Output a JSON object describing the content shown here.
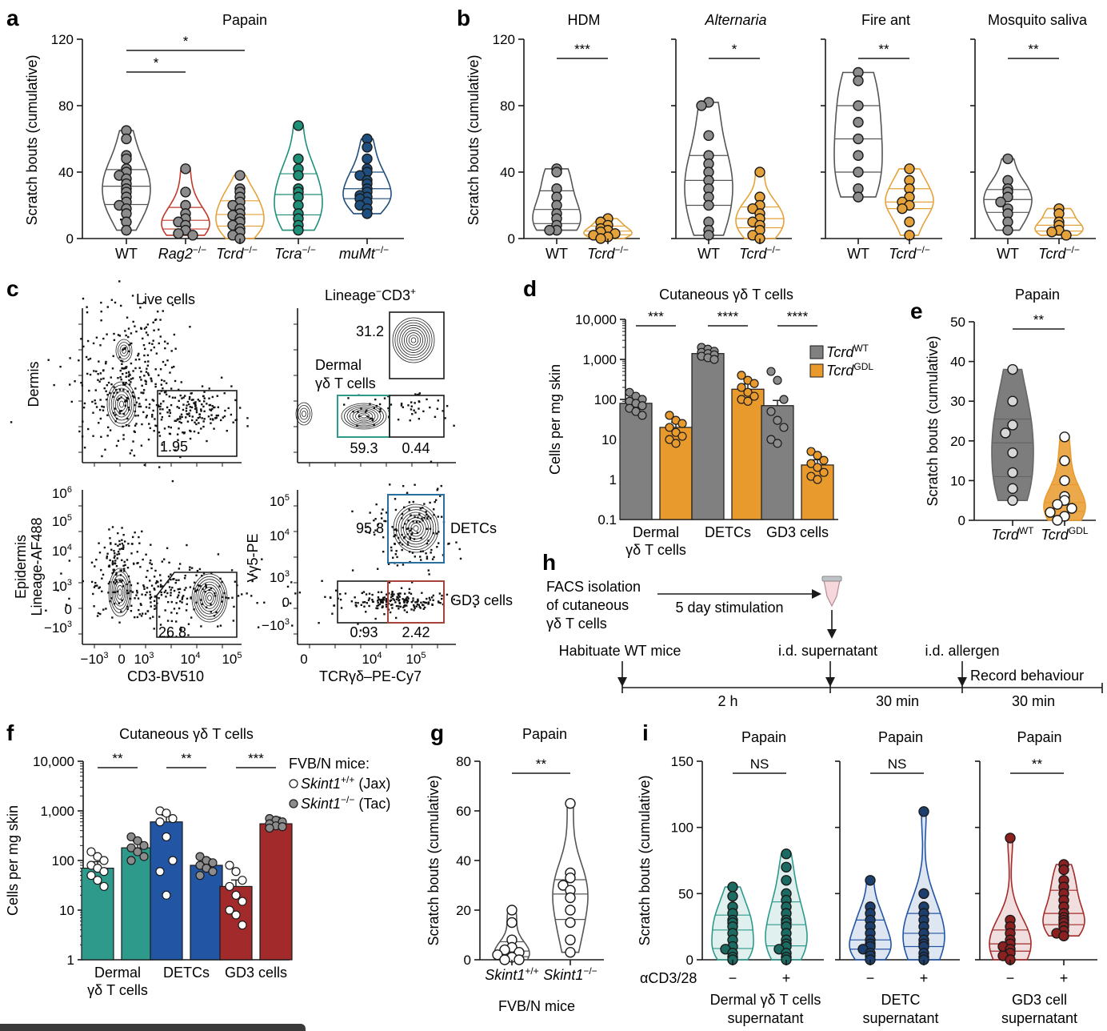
{
  "colors": {
    "wt": "#555555",
    "rag2": "#c0392b",
    "tcrd": "#e5a23a",
    "tcra": "#1f8f78",
    "mumt": "#1f4f7f",
    "gray_bar": "#808080",
    "orange_bar": "#e99a2c",
    "teal": "#2e9a8c",
    "blue": "#2255a4",
    "red": "#a32a2a",
    "gate_teal": "#2e9a8c",
    "gate_blue": "#2b6f9e",
    "gate_red": "#a8423a"
  },
  "chart_data": [
    {
      "panel": "a",
      "type": "scatter",
      "title": "Papain",
      "ylabel": "Scratch bouts (cumulative)",
      "ylim": [
        0,
        120
      ],
      "yticks": [
        "0",
        "40",
        "80",
        "120"
      ],
      "categories": [
        "WT",
        "Rag2",
        "Tcrd",
        "Tcra",
        "muMt"
      ],
      "category_suffix": "−/−",
      "series": [
        {
          "group": "WT",
          "values": [
            65,
            60,
            50,
            48,
            42,
            40,
            38,
            36,
            33,
            30,
            28,
            25,
            22,
            20,
            18,
            15,
            10,
            5
          ]
        },
        {
          "group": "Rag2",
          "values": [
            42,
            28,
            20,
            15,
            12,
            10,
            8,
            5,
            3,
            2
          ]
        },
        {
          "group": "Tcrd",
          "values": [
            38,
            30,
            28,
            25,
            22,
            20,
            18,
            15,
            14,
            12,
            10,
            8,
            6,
            4,
            2,
            0
          ]
        },
        {
          "group": "Tcra",
          "values": [
            68,
            48,
            42,
            38,
            30,
            28,
            25,
            20,
            15,
            12,
            8,
            5
          ]
        },
        {
          "group": "muMt",
          "values": [
            60,
            55,
            48,
            42,
            40,
            38,
            35,
            33,
            30,
            28,
            26,
            25,
            24,
            22,
            20,
            18,
            15
          ]
        }
      ],
      "significance": [
        "*",
        "*"
      ]
    },
    {
      "panel": "b",
      "type": "scatter",
      "ylabel": "Scratch bouts (cumulative)",
      "ylim": [
        0,
        120
      ],
      "yticks": [
        "0",
        "40",
        "80",
        "120"
      ],
      "subplots": [
        {
          "title": "HDM",
          "sig": "***",
          "WT": [
            42,
            40,
            30,
            25,
            20,
            15,
            12,
            8,
            5,
            5
          ],
          "Tcrd": [
            12,
            10,
            8,
            6,
            5,
            4,
            3,
            2,
            1,
            0
          ]
        },
        {
          "title": "Alternaria",
          "sig": "*",
          "WT": [
            82,
            80,
            62,
            50,
            45,
            40,
            35,
            30,
            25,
            20,
            10,
            5,
            2
          ],
          "Tcrd": [
            40,
            25,
            20,
            18,
            15,
            12,
            10,
            8,
            5,
            2,
            0
          ]
        },
        {
          "title": "Fire ant",
          "sig": "**",
          "WT": [
            100,
            95,
            80,
            70,
            60,
            50,
            40,
            30,
            25
          ],
          "Tcrd": [
            42,
            35,
            30,
            25,
            22,
            20,
            18,
            10,
            2
          ]
        },
        {
          "title": "Mosquito saliva",
          "sig": "**",
          "WT": [
            48,
            35,
            30,
            28,
            25,
            22,
            18,
            15,
            10,
            5
          ],
          "Tcrd": [
            18,
            15,
            10,
            8,
            5,
            4,
            2
          ]
        }
      ],
      "categories": [
        "WT",
        "Tcrd"
      ],
      "category_suffix": "−/−"
    },
    {
      "panel": "d",
      "type": "bar",
      "title": "Cutaneous γδ T cells",
      "ylabel": "Cells per mg skin",
      "log_scale": true,
      "yticks": [
        "0.1",
        "1",
        "10",
        "100",
        "1,000",
        "10,000"
      ],
      "categories": [
        "Dermal\nγδ T cells",
        "DETCs",
        "GD3 cells"
      ],
      "series": [
        {
          "name": "Tcrd",
          "sup": "WT",
          "values": [
            80,
            1400,
            70
          ],
          "points": [
            [
              150,
              120,
              100,
              90,
              80,
              70,
              60,
              50,
              40
            ],
            [
              2000,
              1800,
              1600,
              1500,
              1400,
              1300,
              1200,
              1100,
              1000
            ],
            [
              500,
              300,
              100,
              50,
              30,
              20,
              10,
              8
            ]
          ]
        },
        {
          "name": "Tcrd",
          "sup": "GDL",
          "values": [
            20,
            180,
            2.3
          ],
          "points": [
            [
              40,
              30,
              25,
              20,
              15,
              12,
              10,
              8
            ],
            [
              400,
              300,
              250,
              200,
              150,
              120,
              100,
              90
            ],
            [
              5,
              4,
              3,
              2.5,
              2,
              1.5,
              1.2,
              1
            ]
          ]
        }
      ],
      "significance": [
        "***",
        "****",
        "****"
      ],
      "legend_position": "top-right"
    },
    {
      "panel": "e",
      "type": "scatter",
      "title": "Papain",
      "ylabel": "Scratch bouts (cumulative)",
      "ylim": [
        0,
        50
      ],
      "yticks": [
        "0",
        "10",
        "20",
        "30",
        "40",
        "50"
      ],
      "categories": [
        "Tcrd",
        "Tcrd"
      ],
      "category_sups": [
        "WT",
        "GDL"
      ],
      "series": [
        {
          "group": "TcrdWT",
          "values": [
            38,
            30,
            24,
            22,
            17,
            12,
            8,
            5
          ]
        },
        {
          "group": "TcrdGDL",
          "values": [
            21,
            15,
            10,
            6,
            5,
            4,
            3,
            2,
            1,
            0
          ]
        }
      ],
      "significance": [
        "**"
      ]
    },
    {
      "panel": "f",
      "type": "bar",
      "title": "Cutaneous γδ T cells",
      "ylabel": "Cells per mg skin",
      "log_scale": true,
      "yticks": [
        "1",
        "10",
        "100",
        "1,000",
        "10,000"
      ],
      "categories": [
        "Dermal\nγδ T cells",
        "DETCs",
        "GD3 cells"
      ],
      "legend_title": "FVB/N mice:",
      "series": [
        {
          "name": "Skint1",
          "sup": "+/+",
          "note": " (Jax)",
          "values": [
            70,
            600,
            30
          ],
          "points": [
            [
              150,
              120,
              100,
              80,
              70,
              60,
              50,
              40,
              30
            ],
            [
              1000,
              900,
              700,
              600,
              300,
              100,
              60,
              20
            ],
            [
              80,
              60,
              40,
              30,
              20,
              15,
              10,
              8,
              5
            ]
          ]
        },
        {
          "name": "Skint1",
          "sup": "−/−",
          "note": " (Tac)",
          "values": [
            180,
            80,
            550
          ],
          "points": [
            [
              300,
              250,
              200,
              180,
              150,
              120,
              100
            ],
            [
              120,
              100,
              90,
              80,
              70,
              60,
              50
            ],
            [
              700,
              650,
              600,
              550,
              500,
              480,
              450
            ]
          ]
        }
      ],
      "significance": [
        "**",
        "**",
        "***"
      ]
    },
    {
      "panel": "g",
      "type": "scatter",
      "title": "Papain",
      "ylabel": "Scratch bouts (cumulative)",
      "ylim": [
        0,
        80
      ],
      "yticks": [
        "0",
        "20",
        "40",
        "60",
        "80"
      ],
      "categories": [
        "Skint1",
        "Skint1"
      ],
      "category_sups": [
        "+/+",
        "−/−"
      ],
      "xlabel": "FVB/N mice",
      "series": [
        {
          "group": "Skint1+/+",
          "values": [
            20,
            15,
            8,
            5,
            4,
            3,
            2,
            1,
            0,
            0
          ]
        },
        {
          "group": "Skint1−/−",
          "values": [
            63,
            35,
            33,
            30,
            28,
            25,
            20,
            15,
            8,
            3
          ]
        }
      ],
      "significance": [
        "**"
      ]
    },
    {
      "panel": "i",
      "type": "scatter",
      "ylabel": "Scratch bouts (cumulative)",
      "ylim": [
        0,
        150
      ],
      "yticks": [
        "0",
        "50",
        "100",
        "150"
      ],
      "row_label": "αCD3/28",
      "subplots": [
        {
          "title": "Papain",
          "sig": "NS",
          "xlabel": "Dermal γδ T cells\nsupernatant",
          "minus": [
            55,
            48,
            40,
            35,
            30,
            28,
            25,
            20,
            15,
            10,
            8,
            5,
            2,
            0
          ],
          "plus": [
            80,
            70,
            60,
            50,
            45,
            40,
            35,
            30,
            28,
            25,
            20,
            15,
            12,
            10,
            8,
            5,
            2,
            0
          ]
        },
        {
          "title": "Papain",
          "sig": "NS",
          "xlabel": "DETC\nsupernatant",
          "minus": [
            60,
            40,
            35,
            30,
            25,
            20,
            15,
            12,
            10,
            8,
            5,
            3,
            0
          ],
          "plus": [
            112,
            50,
            40,
            35,
            30,
            25,
            20,
            15,
            12,
            10,
            5,
            2,
            0
          ]
        },
        {
          "title": "Papain",
          "sig": "**",
          "xlabel": "GD3 cell\nsupernatant",
          "minus": [
            92,
            30,
            25,
            20,
            15,
            12,
            10,
            8,
            5,
            3,
            0
          ],
          "plus": [
            72,
            68,
            60,
            55,
            50,
            45,
            40,
            35,
            32,
            30,
            28,
            25,
            22,
            20,
            18
          ]
        }
      ],
      "tick_minus": "−",
      "tick_plus": "+"
    }
  ],
  "panel_c": {
    "titles": [
      "Live cells",
      "Lineage",
      "CD3",
      "Dermal",
      "γδ T cells"
    ],
    "row_labels": [
      "Dermis",
      "Epidermis",
      "Lineage-AF488"
    ],
    "gate_values": [
      "1.95",
      "31.2",
      "59.3",
      "0.44",
      "26.8",
      "95.8",
      "0.93",
      "2.42"
    ],
    "gate_names": [
      "DETCs",
      "GD3 cells"
    ],
    "x_labels": [
      "CD3-BV510",
      "TCRγδ–PE-Cy7"
    ],
    "y_label": "Vγ5-PE",
    "ticks": [
      "10",
      "6",
      "5",
      "4",
      "3",
      "0",
      "−10",
      "0",
      "10",
      "4",
      "10",
      "5",
      "−10",
      "3"
    ]
  },
  "panel_h": {
    "steps": [
      "FACS isolation",
      "of cutaneous",
      "γδ T cells",
      "5 day stimulation",
      "Habituate WT mice",
      "i.d. supernatant",
      "i.d. allergen",
      "Record behaviour"
    ],
    "durations": [
      "2 h",
      "30 min",
      "30 min"
    ]
  },
  "panel_letters": [
    "a",
    "b",
    "c",
    "d",
    "e",
    "f",
    "g",
    "h",
    "i"
  ]
}
